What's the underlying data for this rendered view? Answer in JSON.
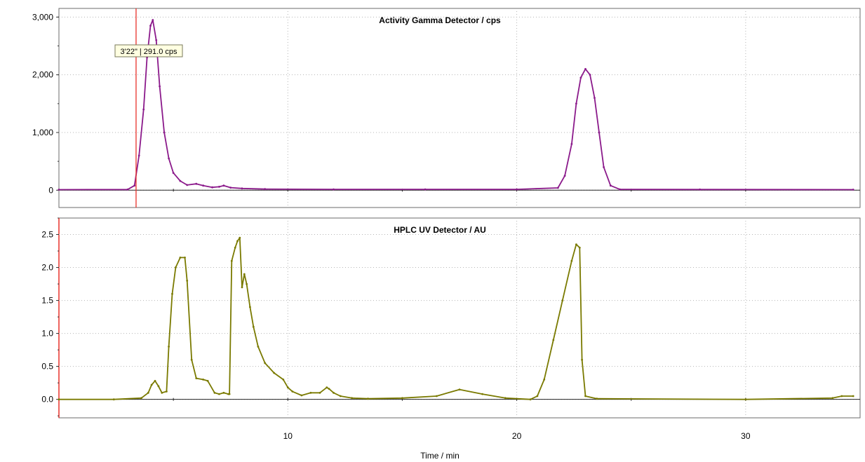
{
  "chart_data": [
    {
      "type": "line",
      "title": "Activity Gamma Detector / cps",
      "xlabel": "",
      "ylabel": "",
      "xlim": [
        0,
        35
      ],
      "ylim": [
        -300,
        3150
      ],
      "yticks": [
        0,
        1000,
        2000,
        3000
      ],
      "ytick_labels": [
        "0",
        "1,000",
        "2,000",
        "3,000"
      ],
      "xticks": [
        10,
        20,
        30
      ],
      "grid": true,
      "colors": {
        "line": "#8b1a8b"
      },
      "marker": {
        "x": 3.37,
        "color": "#e8312a"
      },
      "tooltip": "3'22\" | 291.0 cps",
      "series": [
        {
          "x": [
            0,
            3.0,
            3.3,
            3.5,
            3.7,
            3.85,
            4.0,
            4.1,
            4.25,
            4.4,
            4.6,
            4.8,
            5.0,
            5.3,
            5.6,
            6.0,
            6.3,
            6.7,
            7.0,
            7.2,
            7.5,
            8.0,
            9.0,
            12.0,
            16.0,
            20.0,
            21.8,
            22.1,
            22.4,
            22.6,
            22.8,
            23.0,
            23.2,
            23.4,
            23.6,
            23.8,
            24.1,
            24.5,
            28,
            34.7
          ],
          "y": [
            10,
            12,
            80,
            600,
            1400,
            2300,
            2850,
            2950,
            2600,
            1800,
            1000,
            550,
            300,
            160,
            90,
            110,
            80,
            50,
            60,
            80,
            45,
            30,
            20,
            15,
            15,
            15,
            40,
            250,
            800,
            1500,
            1950,
            2100,
            2000,
            1600,
            1000,
            400,
            80,
            15,
            12,
            10
          ]
        }
      ]
    },
    {
      "type": "line",
      "title": "HPLC UV Detector / AU",
      "xlabel": "Time / min",
      "ylabel": "",
      "xlim": [
        0,
        35
      ],
      "ylim": [
        -0.28,
        2.75
      ],
      "yticks": [
        0,
        0.5,
        1.0,
        1.5,
        2.0,
        2.5
      ],
      "ytick_labels": [
        "0.0",
        "0.5",
        "1.0",
        "1.5",
        "2.0",
        "2.5"
      ],
      "xticks": [
        10,
        20,
        30
      ],
      "xtick_labels": [
        "10",
        "20",
        "30"
      ],
      "grid": true,
      "colors": {
        "line": "#7a7a00"
      },
      "series": [
        {
          "x": [
            0,
            2.4,
            3.6,
            3.9,
            4.05,
            4.2,
            4.35,
            4.5,
            4.7,
            4.8,
            4.95,
            5.1,
            5.3,
            5.5,
            5.6,
            5.8,
            6.0,
            6.3,
            6.5,
            6.8,
            7.0,
            7.2,
            7.4,
            7.45,
            7.55,
            7.7,
            7.8,
            7.9,
            8.0,
            8.1,
            8.2,
            8.35,
            8.5,
            8.7,
            9.0,
            9.4,
            9.8,
            10.0,
            10.2,
            10.6,
            11.0,
            11.4,
            11.7,
            11.8,
            12.0,
            12.3,
            12.8,
            13.5,
            15.0,
            16.5,
            17.5,
            18.5,
            19.5,
            20.6,
            20.9,
            21.2,
            21.6,
            22.0,
            22.4,
            22.6,
            22.75,
            22.85,
            23.0,
            23.5,
            30,
            33.8,
            34.2,
            34.7
          ],
          "y": [
            0.0,
            0.0,
            0.02,
            0.1,
            0.22,
            0.28,
            0.2,
            0.1,
            0.12,
            0.8,
            1.6,
            2.0,
            2.15,
            2.15,
            1.8,
            0.6,
            0.32,
            0.3,
            0.28,
            0.1,
            0.08,
            0.1,
            0.08,
            0.08,
            2.1,
            2.3,
            2.4,
            2.45,
            1.7,
            1.9,
            1.75,
            1.4,
            1.1,
            0.8,
            0.55,
            0.4,
            0.3,
            0.18,
            0.12,
            0.06,
            0.1,
            0.1,
            0.18,
            0.16,
            0.1,
            0.05,
            0.02,
            0.01,
            0.02,
            0.05,
            0.15,
            0.08,
            0.02,
            0.0,
            0.05,
            0.3,
            0.9,
            1.5,
            2.1,
            2.35,
            2.3,
            0.6,
            0.05,
            0.01,
            0.0,
            0.02,
            0.05,
            0.05
          ]
        }
      ]
    }
  ]
}
